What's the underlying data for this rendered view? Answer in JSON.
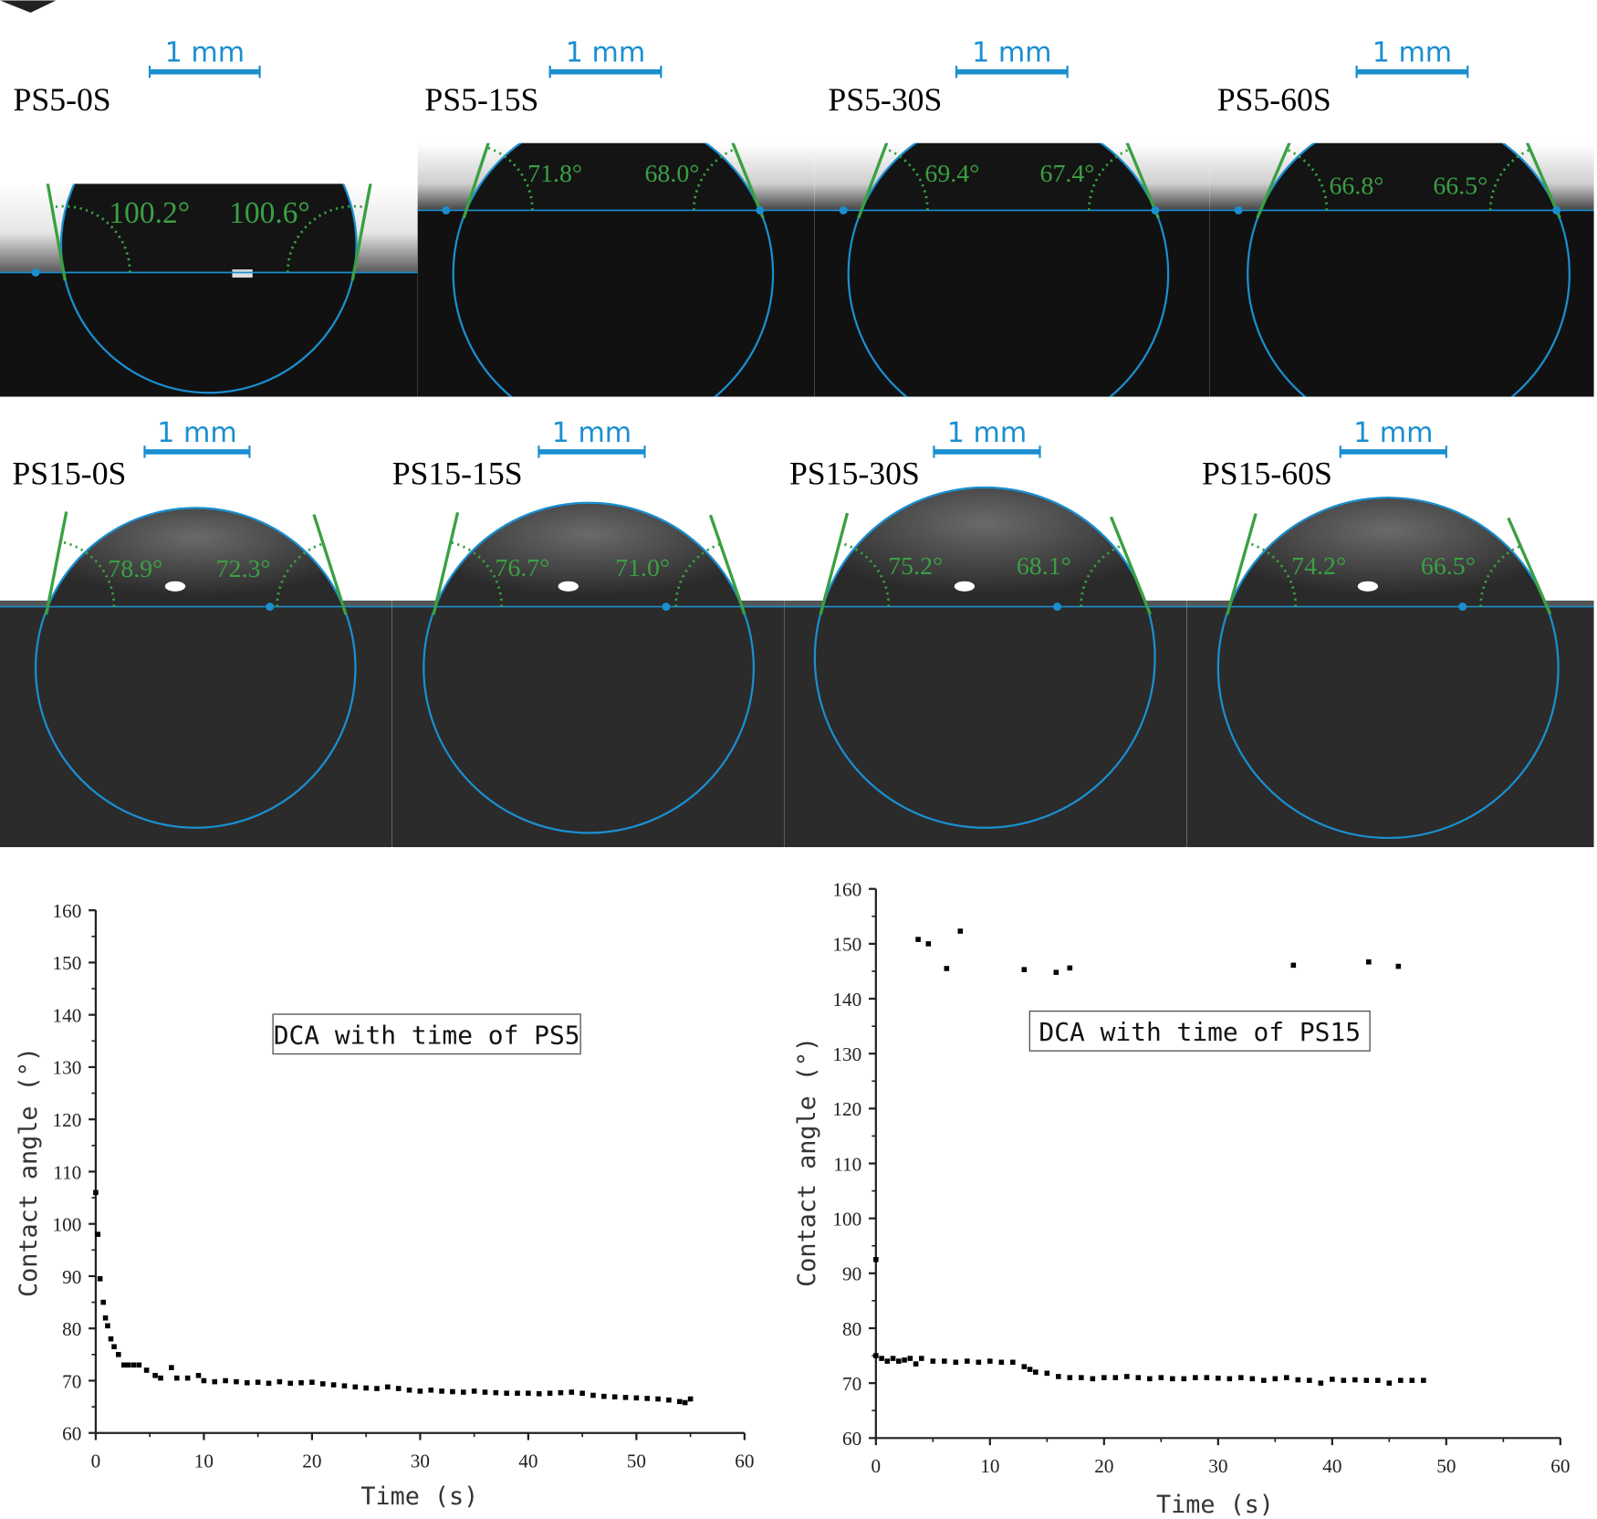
{
  "panels": [
    {
      "label": "PS5-0S",
      "left_angle": "100.2°",
      "right_angle": "100.6°",
      "scale": "1 mm"
    },
    {
      "label": "PS5-15S",
      "left_angle": "71.8°",
      "right_angle": "68.0°",
      "scale": "1 mm"
    },
    {
      "label": "PS5-30S",
      "left_angle": "69.4°",
      "right_angle": "67.4°",
      "scale": "1 mm"
    },
    {
      "label": "PS5-60S",
      "left_angle": "66.8°",
      "right_angle": "66.5°",
      "scale": "1 mm"
    },
    {
      "label": "PS15-0S",
      "left_angle": "78.9°",
      "right_angle": "72.3°",
      "scale": "1 mm"
    },
    {
      "label": "PS15-15S",
      "left_angle": "76.7°",
      "right_angle": "71.0°",
      "scale": "1 mm"
    },
    {
      "label": "PS15-30S",
      "left_angle": "75.2°",
      "right_angle": "68.1°",
      "scale": "1 mm"
    },
    {
      "label": "PS15-60S",
      "left_angle": "74.2°",
      "right_angle": "66.5°",
      "scale": "1 mm"
    }
  ],
  "colors": {
    "fit_circle": "#1a8fd0",
    "tangent": "#3aa043",
    "scale_bar": "#1a8fd0",
    "points": "#000000"
  },
  "chart_data": [
    {
      "type": "scatter",
      "title": "DCA with time of PS5",
      "xlabel": "Time (s)",
      "ylabel": "Contact angle (°)",
      "xlim": [
        0,
        60
      ],
      "ylim": [
        60,
        160
      ],
      "xticks": [
        0,
        10,
        20,
        30,
        40,
        50,
        60
      ],
      "yticks": [
        60,
        70,
        80,
        90,
        100,
        110,
        120,
        130,
        140,
        150,
        160
      ],
      "grid": false,
      "points": [
        [
          0,
          106
        ],
        [
          0.2,
          98
        ],
        [
          0.4,
          89.5
        ],
        [
          0.7,
          85
        ],
        [
          0.9,
          82
        ],
        [
          1.1,
          80.5
        ],
        [
          1.4,
          78
        ],
        [
          1.7,
          76.5
        ],
        [
          2.1,
          75
        ],
        [
          2.6,
          73
        ],
        [
          3,
          73
        ],
        [
          3.5,
          73
        ],
        [
          4,
          73
        ],
        [
          4.7,
          72
        ],
        [
          5.5,
          71
        ],
        [
          6,
          70.5
        ],
        [
          7,
          72.5
        ],
        [
          7.5,
          70.5
        ],
        [
          8.5,
          70.5
        ],
        [
          9.5,
          71
        ],
        [
          10,
          70
        ],
        [
          11,
          69.8
        ],
        [
          12,
          70
        ],
        [
          13,
          69.8
        ],
        [
          14,
          69.6
        ],
        [
          15,
          69.7
        ],
        [
          16,
          69.5
        ],
        [
          17,
          69.8
        ],
        [
          18,
          69.5
        ],
        [
          19,
          69.6
        ],
        [
          20,
          69.7
        ],
        [
          21,
          69.4
        ],
        [
          22,
          69.2
        ],
        [
          23,
          69
        ],
        [
          24,
          68.8
        ],
        [
          25,
          68.6
        ],
        [
          26,
          68.5
        ],
        [
          27,
          68.8
        ],
        [
          28,
          68.5
        ],
        [
          29,
          68.2
        ],
        [
          30,
          68
        ],
        [
          31,
          68.2
        ],
        [
          32,
          68
        ],
        [
          33,
          67.9
        ],
        [
          34,
          67.8
        ],
        [
          35,
          68
        ],
        [
          36,
          67.8
        ],
        [
          37,
          67.7
        ],
        [
          38,
          67.6
        ],
        [
          39,
          67.6
        ],
        [
          40,
          67.6
        ],
        [
          41,
          67.5
        ],
        [
          42,
          67.6
        ],
        [
          43,
          67.7
        ],
        [
          44,
          67.8
        ],
        [
          45,
          67.6
        ],
        [
          46,
          67.2
        ],
        [
          47,
          67
        ],
        [
          48,
          66.9
        ],
        [
          49,
          66.8
        ],
        [
          50,
          66.7
        ],
        [
          51,
          66.6
        ],
        [
          52,
          66.5
        ],
        [
          53,
          66.3
        ],
        [
          54,
          66
        ],
        [
          54.5,
          65.8
        ],
        [
          55,
          66.5
        ]
      ]
    },
    {
      "type": "scatter",
      "title": "DCA with time of PS15",
      "xlabel": "Time (s)",
      "ylabel": "Contact angle (°)",
      "xlim": [
        0,
        60
      ],
      "ylim": [
        60,
        160
      ],
      "xticks": [
        0,
        10,
        20,
        30,
        40,
        50,
        60
      ],
      "yticks": [
        60,
        70,
        80,
        90,
        100,
        110,
        120,
        130,
        140,
        150,
        160
      ],
      "grid": false,
      "points": [
        [
          0,
          92.5
        ],
        [
          0,
          75
        ],
        [
          0.5,
          74.5
        ],
        [
          1,
          74
        ],
        [
          1.5,
          74.5
        ],
        [
          2,
          74
        ],
        [
          2.5,
          74.2
        ],
        [
          3,
          74.5
        ],
        [
          3.5,
          73.5
        ],
        [
          4,
          74.5
        ],
        [
          5,
          74
        ],
        [
          6,
          74
        ],
        [
          7,
          73.8
        ],
        [
          8,
          74
        ],
        [
          9,
          73.8
        ],
        [
          10,
          74
        ],
        [
          11,
          73.8
        ],
        [
          12,
          73.8
        ],
        [
          13,
          73
        ],
        [
          13.5,
          72.5
        ],
        [
          14,
          72
        ],
        [
          15,
          71.8
        ],
        [
          16,
          71.2
        ],
        [
          17,
          71
        ],
        [
          18,
          71
        ],
        [
          19,
          70.8
        ],
        [
          20,
          71
        ],
        [
          21,
          71
        ],
        [
          22,
          71.2
        ],
        [
          23,
          71
        ],
        [
          24,
          70.8
        ],
        [
          25,
          71
        ],
        [
          26,
          70.8
        ],
        [
          27,
          70.8
        ],
        [
          28,
          71
        ],
        [
          29,
          71
        ],
        [
          30,
          70.9
        ],
        [
          31,
          70.8
        ],
        [
          32,
          71
        ],
        [
          33,
          70.8
        ],
        [
          34,
          70.5
        ],
        [
          35,
          70.8
        ],
        [
          36,
          71
        ],
        [
          37,
          70.6
        ],
        [
          38,
          70.5
        ],
        [
          39,
          70
        ],
        [
          40,
          70.7
        ],
        [
          41,
          70.5
        ],
        [
          42,
          70.6
        ],
        [
          43,
          70.5
        ],
        [
          44,
          70.5
        ],
        [
          45,
          70
        ],
        [
          46,
          70.5
        ],
        [
          47,
          70.5
        ],
        [
          48,
          70.5
        ],
        [
          3.7,
          150.8
        ],
        [
          4.6,
          150
        ],
        [
          6.2,
          145.5
        ],
        [
          7.4,
          152.3
        ],
        [
          13,
          145.3
        ],
        [
          15.8,
          144.8
        ],
        [
          17,
          145.6
        ],
        [
          36.6,
          146.1
        ],
        [
          43.2,
          146.7
        ],
        [
          45.8,
          145.9
        ]
      ]
    }
  ]
}
